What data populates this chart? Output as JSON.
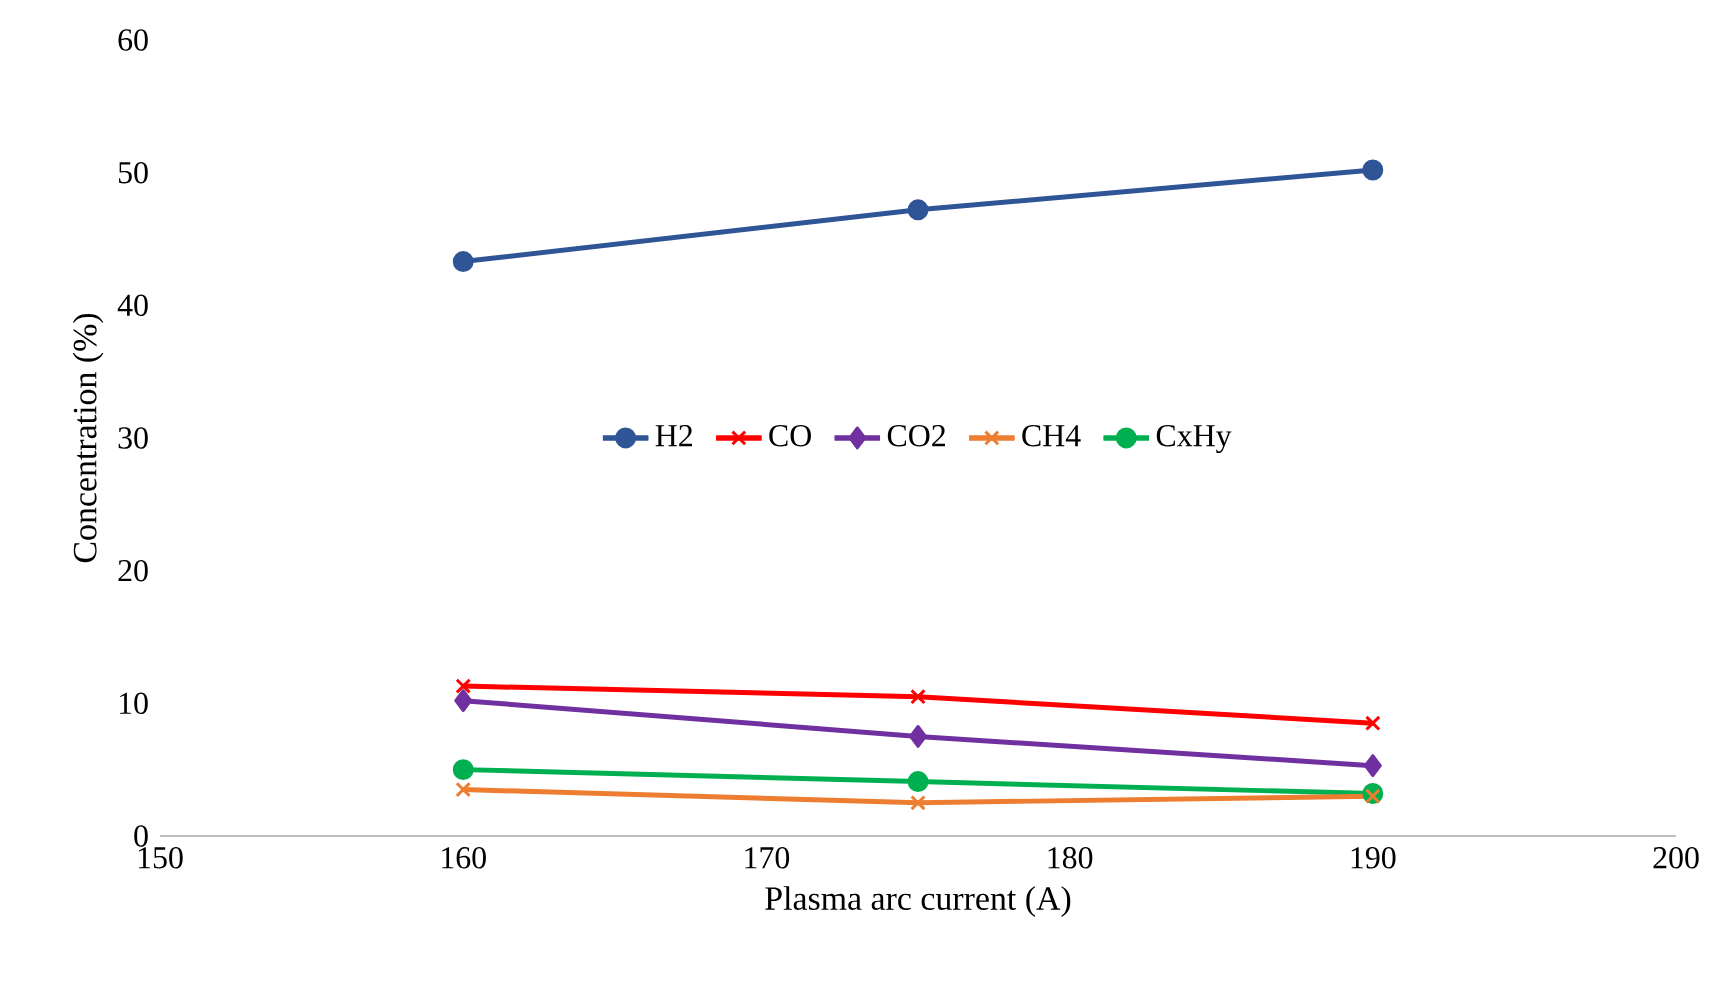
{
  "chart_data": {
    "type": "line",
    "xlabel": "Plasma arc current (A)",
    "ylabel": "Concentration (%)",
    "x": [
      160,
      175,
      190
    ],
    "xlim": [
      150,
      200
    ],
    "xticks": [
      150,
      160,
      170,
      180,
      190,
      200
    ],
    "ylim": [
      0,
      60
    ],
    "yticks": [
      0,
      10,
      20,
      30,
      40,
      50,
      60
    ],
    "grid": false,
    "legend": "center",
    "line_style": "solid",
    "series": [
      {
        "name": "H2",
        "color": "#2f5597",
        "marker": "circle",
        "values": [
          43.3,
          47.2,
          50.2
        ]
      },
      {
        "name": "CO",
        "color": "#ff0000",
        "marker": "cross",
        "values": [
          11.3,
          10.5,
          8.5
        ]
      },
      {
        "name": "CO2",
        "color": "#7030a0",
        "marker": "diamond",
        "values": [
          10.2,
          7.5,
          5.3
        ]
      },
      {
        "name": "CH4",
        "color": "#ed7d31",
        "marker": "cross",
        "values": [
          3.5,
          2.5,
          3.0
        ]
      },
      {
        "name": "CxHy",
        "color": "#00b050",
        "marker": "circle",
        "values": [
          5.0,
          4.1,
          3.2
        ]
      }
    ]
  }
}
